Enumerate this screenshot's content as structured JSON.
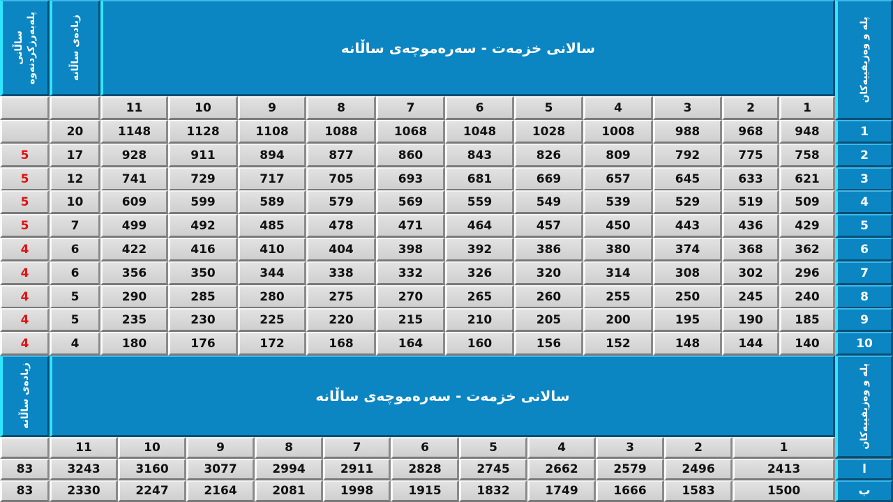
{
  "top": {
    "title": "سالانی خزمەت - سەرەموچەی ساڵانە",
    "grades_header": "پلە و وەزیفییەکان",
    "annual_increase_header": "زیادەی ساڵانە",
    "renewal_header": "ساڵانی پلەبەرزکردنەوە",
    "steps": [
      "1",
      "2",
      "3",
      "4",
      "5",
      "6",
      "7",
      "8",
      "9",
      "10",
      "11"
    ],
    "rows": [
      {
        "grade": "1",
        "values": [
          "948",
          "968",
          "988",
          "1008",
          "1028",
          "1048",
          "1068",
          "1088",
          "1108",
          "1128",
          "1148"
        ],
        "increase": "20",
        "renewal": ""
      },
      {
        "grade": "2",
        "values": [
          "758",
          "775",
          "792",
          "809",
          "826",
          "843",
          "860",
          "877",
          "894",
          "911",
          "928"
        ],
        "increase": "17",
        "renewal": "5"
      },
      {
        "grade": "3",
        "values": [
          "621",
          "633",
          "645",
          "657",
          "669",
          "681",
          "693",
          "705",
          "717",
          "729",
          "741"
        ],
        "increase": "12",
        "renewal": "5"
      },
      {
        "grade": "4",
        "values": [
          "509",
          "519",
          "529",
          "539",
          "549",
          "559",
          "569",
          "579",
          "589",
          "599",
          "609"
        ],
        "increase": "10",
        "renewal": "5"
      },
      {
        "grade": "5",
        "values": [
          "429",
          "436",
          "443",
          "450",
          "457",
          "464",
          "471",
          "478",
          "485",
          "492",
          "499"
        ],
        "increase": "7",
        "renewal": "5"
      },
      {
        "grade": "6",
        "values": [
          "362",
          "368",
          "374",
          "380",
          "386",
          "392",
          "398",
          "404",
          "410",
          "416",
          "422"
        ],
        "increase": "6",
        "renewal": "4"
      },
      {
        "grade": "7",
        "values": [
          "296",
          "302",
          "308",
          "314",
          "320",
          "326",
          "332",
          "338",
          "344",
          "350",
          "356"
        ],
        "increase": "6",
        "renewal": "4"
      },
      {
        "grade": "8",
        "values": [
          "240",
          "245",
          "250",
          "255",
          "260",
          "265",
          "270",
          "275",
          "280",
          "285",
          "290"
        ],
        "increase": "5",
        "renewal": "4"
      },
      {
        "grade": "9",
        "values": [
          "185",
          "190",
          "195",
          "200",
          "205",
          "210",
          "215",
          "220",
          "225",
          "230",
          "235"
        ],
        "increase": "5",
        "renewal": "4"
      },
      {
        "grade": "10",
        "values": [
          "140",
          "144",
          "148",
          "152",
          "156",
          "160",
          "164",
          "168",
          "172",
          "176",
          "180"
        ],
        "increase": "4",
        "renewal": "4"
      }
    ]
  },
  "bottom": {
    "title": "سالانی خزمەت - سەرەموچەی ساڵانە",
    "grades_header": "پلە و وەزیفییەکان",
    "annual_increase_header": "زیادەی ساڵانە",
    "steps": [
      "1",
      "2",
      "3",
      "4",
      "5",
      "6",
      "7",
      "8",
      "9",
      "10",
      "11"
    ],
    "rows": [
      {
        "grade": "ا",
        "values": [
          "2413",
          "2496",
          "2579",
          "2662",
          "2745",
          "2828",
          "2911",
          "2994",
          "3077",
          "3160",
          "3243"
        ],
        "increase": "83"
      },
      {
        "grade": "ب",
        "values": [
          "1500",
          "1583",
          "1666",
          "1749",
          "1832",
          "1915",
          "1998",
          "2081",
          "2164",
          "2247",
          "2330"
        ],
        "increase": "83"
      }
    ]
  },
  "colors": {
    "header_blue": "#0b86c3",
    "renewal_red": "#e01010"
  }
}
